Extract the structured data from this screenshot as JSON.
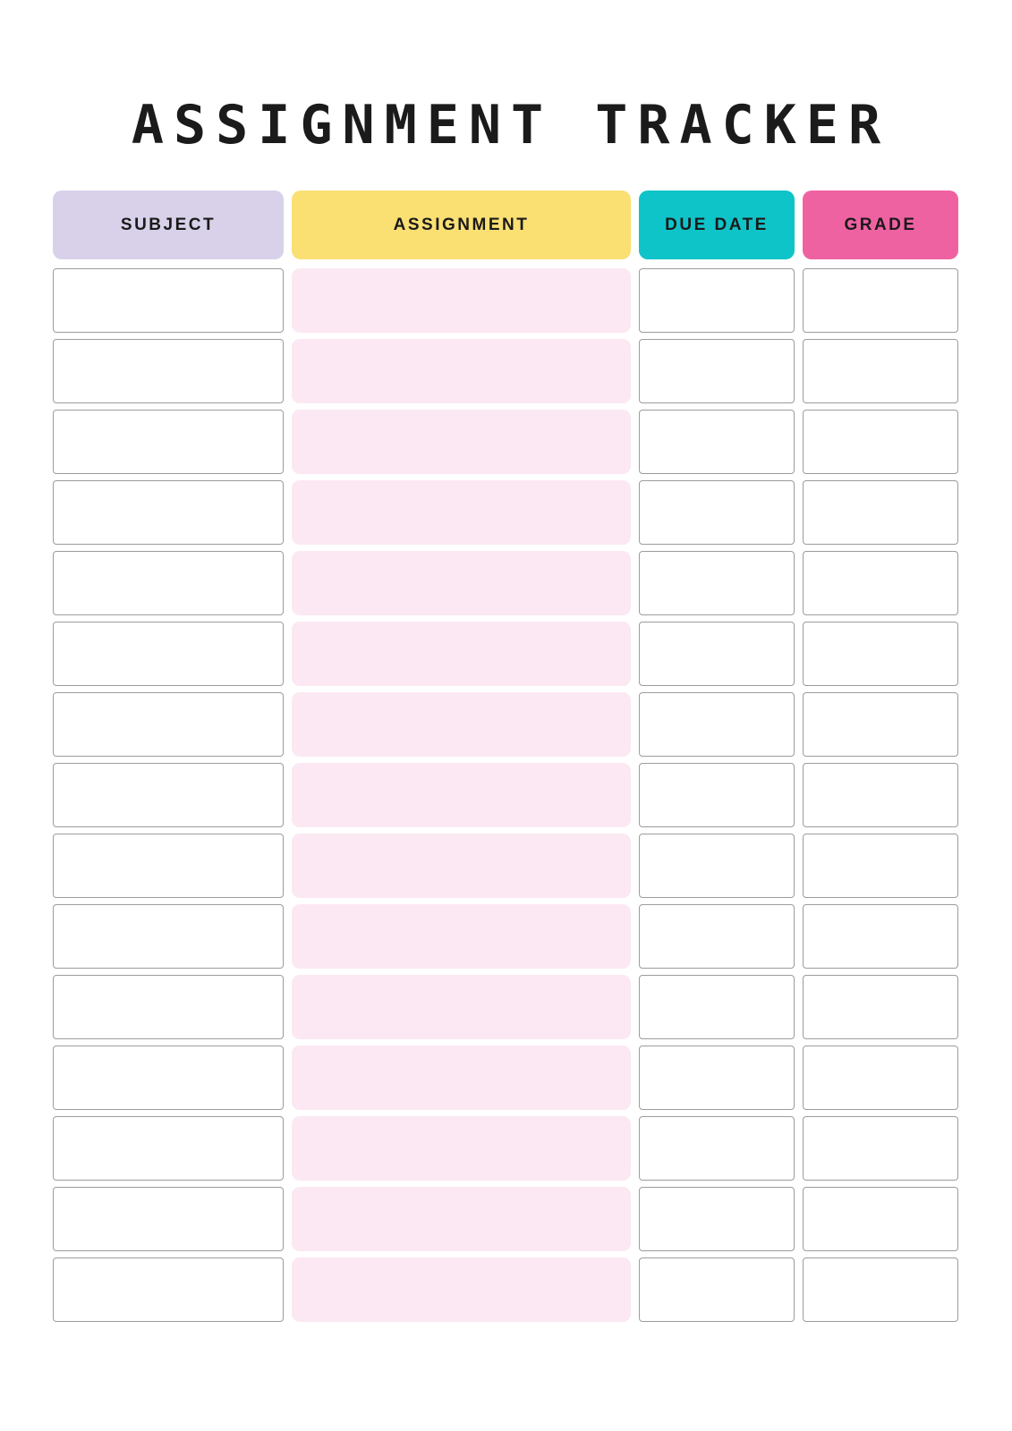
{
  "title": "ASSIGNMENT TRACKER",
  "colors": {
    "page_bg": "#ffffff",
    "title_text": "#1b1b1b",
    "header_text": "#1a1a1a",
    "subject_header_bg": "#d8d1e9",
    "assignment_header_bg": "#fadf73",
    "due_date_header_bg": "#0fc4c9",
    "grade_header_bg": "#ef62a2",
    "assignment_cell_bg": "#fce8f2",
    "cell_bg": "#ffffff",
    "cell_border": "#9c9c9c"
  },
  "table": {
    "columns": [
      {
        "key": "subject",
        "label": "SUBJECT"
      },
      {
        "key": "assignment",
        "label": "ASSIGNMENT"
      },
      {
        "key": "due_date",
        "label": "DUE DATE"
      },
      {
        "key": "grade",
        "label": "GRADE"
      }
    ],
    "rows": [
      {
        "subject": "",
        "assignment": "",
        "due_date": "",
        "grade": ""
      },
      {
        "subject": "",
        "assignment": "",
        "due_date": "",
        "grade": ""
      },
      {
        "subject": "",
        "assignment": "",
        "due_date": "",
        "grade": ""
      },
      {
        "subject": "",
        "assignment": "",
        "due_date": "",
        "grade": ""
      },
      {
        "subject": "",
        "assignment": "",
        "due_date": "",
        "grade": ""
      },
      {
        "subject": "",
        "assignment": "",
        "due_date": "",
        "grade": ""
      },
      {
        "subject": "",
        "assignment": "",
        "due_date": "",
        "grade": ""
      },
      {
        "subject": "",
        "assignment": "",
        "due_date": "",
        "grade": ""
      },
      {
        "subject": "",
        "assignment": "",
        "due_date": "",
        "grade": ""
      },
      {
        "subject": "",
        "assignment": "",
        "due_date": "",
        "grade": ""
      },
      {
        "subject": "",
        "assignment": "",
        "due_date": "",
        "grade": ""
      },
      {
        "subject": "",
        "assignment": "",
        "due_date": "",
        "grade": ""
      },
      {
        "subject": "",
        "assignment": "",
        "due_date": "",
        "grade": ""
      },
      {
        "subject": "",
        "assignment": "",
        "due_date": "",
        "grade": ""
      },
      {
        "subject": "",
        "assignment": "",
        "due_date": "",
        "grade": ""
      }
    ]
  }
}
